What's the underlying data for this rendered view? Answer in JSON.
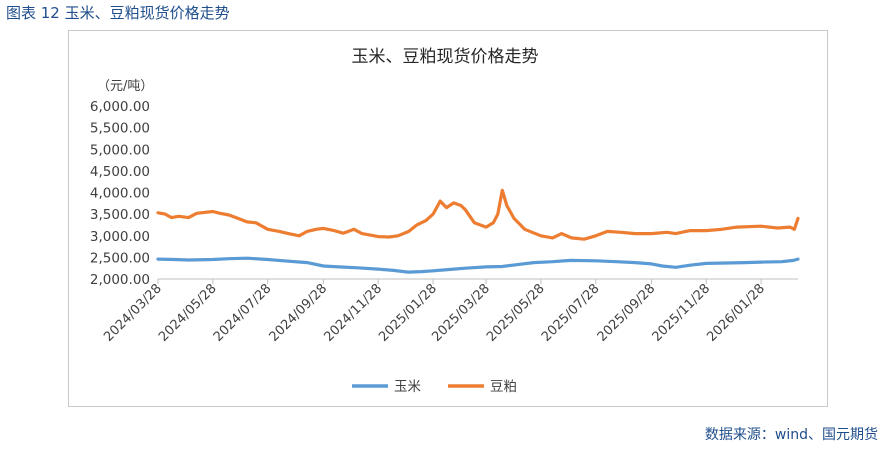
{
  "figure_caption": "图表 12 玉米、豆粕现货价格走势",
  "source": "数据来源：wind、国元期货",
  "colors": {
    "corn": "#5b9bd5",
    "soymeal": "#ed7d31",
    "axis": "#bfbfbf",
    "caption": "#1f4e8c"
  },
  "chart_data": {
    "type": "line",
    "title": "玉米、豆粕现货价格走势",
    "ylabel": "（元/吨）",
    "xlabel": "",
    "ylim": [
      2000,
      6000
    ],
    "yticks": [
      "6,000.00",
      "5,500.00",
      "5,000.00",
      "4,500.00",
      "4,000.00",
      "3,500.00",
      "3,000.00",
      "2,500.00",
      "2,000.00"
    ],
    "ytick_values": [
      6000,
      5500,
      5000,
      4500,
      4000,
      3500,
      3000,
      2500,
      2000
    ],
    "x_start": "2024/03/28",
    "x_end": "2026/03/10",
    "xticks": [
      "2024/03/28",
      "2024/05/28",
      "2024/07/28",
      "2024/09/28",
      "2024/11/28",
      "2025/01/28",
      "2025/03/28",
      "2025/05/28",
      "2025/07/28",
      "2025/09/28",
      "2025/11/28",
      "2026/01/28"
    ],
    "grid": false,
    "legend": "bottom",
    "series": [
      {
        "name": "玉米",
        "points": [
          [
            "2024/03/28",
            2460
          ],
          [
            "2024/04/15",
            2450
          ],
          [
            "2024/05/01",
            2440
          ],
          [
            "2024/05/28",
            2450
          ],
          [
            "2024/06/15",
            2470
          ],
          [
            "2024/07/05",
            2480
          ],
          [
            "2024/07/28",
            2450
          ],
          [
            "2024/08/15",
            2420
          ],
          [
            "2024/09/10",
            2380
          ],
          [
            "2024/09/28",
            2300
          ],
          [
            "2024/10/15",
            2280
          ],
          [
            "2024/11/05",
            2260
          ],
          [
            "2024/11/28",
            2230
          ],
          [
            "2024/12/15",
            2200
          ],
          [
            "2024/12/31",
            2160
          ],
          [
            "2025/01/15",
            2170
          ],
          [
            "2025/01/28",
            2190
          ],
          [
            "2025/02/15",
            2220
          ],
          [
            "2025/03/05",
            2250
          ],
          [
            "2025/03/28",
            2280
          ],
          [
            "2025/04/15",
            2290
          ],
          [
            "2025/05/01",
            2330
          ],
          [
            "2025/05/20",
            2380
          ],
          [
            "2025/06/10",
            2400
          ],
          [
            "2025/06/30",
            2430
          ],
          [
            "2025/07/28",
            2420
          ],
          [
            "2025/08/20",
            2400
          ],
          [
            "2025/09/10",
            2380
          ],
          [
            "2025/09/28",
            2350
          ],
          [
            "2025/10/10",
            2300
          ],
          [
            "2025/10/25",
            2270
          ],
          [
            "2025/11/10",
            2320
          ],
          [
            "2025/11/28",
            2360
          ],
          [
            "2025/12/20",
            2370
          ],
          [
            "2026/01/10",
            2380
          ],
          [
            "2026/01/28",
            2390
          ],
          [
            "2026/02/20",
            2400
          ],
          [
            "2026/03/05",
            2430
          ],
          [
            "2026/03/10",
            2460
          ]
        ]
      },
      {
        "name": "豆粕",
        "points": [
          [
            "2024/03/28",
            3530
          ],
          [
            "2024/04/05",
            3500
          ],
          [
            "2024/04/12",
            3420
          ],
          [
            "2024/04/20",
            3450
          ],
          [
            "2024/05/01",
            3420
          ],
          [
            "2024/05/10",
            3520
          ],
          [
            "2024/05/28",
            3560
          ],
          [
            "2024/06/05",
            3520
          ],
          [
            "2024/06/15",
            3480
          ],
          [
            "2024/06/25",
            3400
          ],
          [
            "2024/07/05",
            3320
          ],
          [
            "2024/07/15",
            3300
          ],
          [
            "2024/07/28",
            3150
          ],
          [
            "2024/08/10",
            3100
          ],
          [
            "2024/08/20",
            3050
          ],
          [
            "2024/09/01",
            3000
          ],
          [
            "2024/09/10",
            3100
          ],
          [
            "2024/09/20",
            3150
          ],
          [
            "2024/09/28",
            3170
          ],
          [
            "2024/10/10",
            3120
          ],
          [
            "2024/10/20",
            3060
          ],
          [
            "2024/11/01",
            3150
          ],
          [
            "2024/11/10",
            3050
          ],
          [
            "2024/11/28",
            2980
          ],
          [
            "2024/12/10",
            2970
          ],
          [
            "2024/12/20",
            3000
          ],
          [
            "2025/01/01",
            3100
          ],
          [
            "2025/01/10",
            3250
          ],
          [
            "2025/01/20",
            3350
          ],
          [
            "2025/01/28",
            3500
          ],
          [
            "2025/02/05",
            3800
          ],
          [
            "2025/02/12",
            3650
          ],
          [
            "2025/02/20",
            3760
          ],
          [
            "2025/02/28",
            3700
          ],
          [
            "2025/03/05",
            3600
          ],
          [
            "2025/03/15",
            3300
          ],
          [
            "2025/03/28",
            3200
          ],
          [
            "2025/04/05",
            3300
          ],
          [
            "2025/04/10",
            3500
          ],
          [
            "2025/04/15",
            4050
          ],
          [
            "2025/04/20",
            3700
          ],
          [
            "2025/04/28",
            3400
          ],
          [
            "2025/05/10",
            3150
          ],
          [
            "2025/05/28",
            3000
          ],
          [
            "2025/06/10",
            2950
          ],
          [
            "2025/06/20",
            3050
          ],
          [
            "2025/07/01",
            2950
          ],
          [
            "2025/07/15",
            2920
          ],
          [
            "2025/07/28",
            3000
          ],
          [
            "2025/08/10",
            3100
          ],
          [
            "2025/08/25",
            3080
          ],
          [
            "2025/09/10",
            3050
          ],
          [
            "2025/09/28",
            3050
          ],
          [
            "2025/10/15",
            3080
          ],
          [
            "2025/10/25",
            3050
          ],
          [
            "2025/11/10",
            3120
          ],
          [
            "2025/11/28",
            3120
          ],
          [
            "2025/12/15",
            3150
          ],
          [
            "2026/01/01",
            3200
          ],
          [
            "2026/01/28",
            3220
          ],
          [
            "2026/02/15",
            3180
          ],
          [
            "2026/03/01",
            3200
          ],
          [
            "2026/03/06",
            3150
          ],
          [
            "2026/03/10",
            3400
          ]
        ]
      }
    ]
  }
}
